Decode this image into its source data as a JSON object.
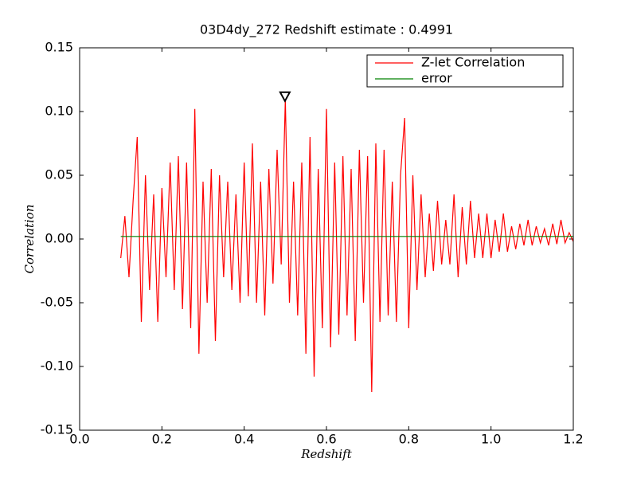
{
  "chart_data": {
    "type": "line",
    "title": "03D4dy_272 Redshift estimate : 0.4991",
    "x_label": "Redshift",
    "y_label": "Correlation",
    "xlim": [
      0.0,
      1.2
    ],
    "ylim": [
      -0.15,
      0.15
    ],
    "xticks": [
      {
        "value": 0.0,
        "label": "0.0"
      },
      0.2,
      0.4,
      0.6,
      0.8,
      {
        "value": 1.0,
        "label": "1.0"
      },
      1.2
    ],
    "yticks": [
      -0.15,
      {
        "value": -0.1,
        "label": "-0.10"
      },
      -0.05,
      {
        "value": 0.0,
        "label": "0.00"
      },
      0.05,
      {
        "value": 0.1,
        "label": "0.10"
      },
      0.15
    ],
    "legend": "upper right",
    "peak_marker": {
      "x": 0.4991,
      "y": 0.112
    },
    "series": [
      {
        "name": "Z-let Correlation",
        "color": "#ff0000",
        "x": [
          0.1,
          0.11,
          0.12,
          0.13,
          0.14,
          0.15,
          0.16,
          0.17,
          0.18,
          0.19,
          0.2,
          0.21,
          0.22,
          0.23,
          0.24,
          0.25,
          0.26,
          0.27,
          0.28,
          0.29,
          0.3,
          0.31,
          0.32,
          0.33,
          0.34,
          0.35,
          0.36,
          0.37,
          0.38,
          0.39,
          0.4,
          0.41,
          0.42,
          0.43,
          0.44,
          0.45,
          0.46,
          0.47,
          0.48,
          0.49,
          0.5,
          0.51,
          0.52,
          0.53,
          0.54,
          0.55,
          0.56,
          0.57,
          0.58,
          0.59,
          0.6,
          0.61,
          0.62,
          0.63,
          0.64,
          0.65,
          0.66,
          0.67,
          0.68,
          0.69,
          0.7,
          0.71,
          0.72,
          0.73,
          0.74,
          0.75,
          0.76,
          0.77,
          0.78,
          0.79,
          0.8,
          0.81,
          0.82,
          0.83,
          0.84,
          0.85,
          0.86,
          0.87,
          0.88,
          0.89,
          0.9,
          0.91,
          0.92,
          0.93,
          0.94,
          0.95,
          0.96,
          0.97,
          0.98,
          0.99,
          1.0,
          1.01,
          1.02,
          1.03,
          1.04,
          1.05,
          1.06,
          1.07,
          1.08,
          1.09,
          1.1,
          1.11,
          1.12,
          1.13,
          1.14,
          1.15,
          1.16,
          1.17,
          1.18,
          1.19,
          1.2
        ],
        "values": [
          -0.015,
          0.018,
          -0.03,
          0.03,
          0.08,
          -0.065,
          0.05,
          -0.04,
          0.035,
          -0.065,
          0.04,
          -0.03,
          0.06,
          -0.04,
          0.065,
          -0.055,
          0.06,
          -0.07,
          0.102,
          -0.09,
          0.045,
          -0.05,
          0.055,
          -0.08,
          0.05,
          -0.03,
          0.045,
          -0.04,
          0.035,
          -0.05,
          0.06,
          -0.045,
          0.075,
          -0.05,
          0.045,
          -0.06,
          0.055,
          -0.035,
          0.07,
          -0.02,
          0.11,
          -0.05,
          0.045,
          -0.06,
          0.06,
          -0.09,
          0.08,
          -0.108,
          0.055,
          -0.07,
          0.102,
          -0.085,
          0.06,
          -0.075,
          0.065,
          -0.06,
          0.055,
          -0.08,
          0.07,
          -0.05,
          0.065,
          -0.12,
          0.075,
          -0.065,
          0.07,
          -0.06,
          0.045,
          -0.065,
          0.05,
          0.095,
          -0.07,
          0.05,
          -0.04,
          0.035,
          -0.03,
          0.02,
          -0.025,
          0.03,
          -0.02,
          0.015,
          -0.02,
          0.035,
          -0.03,
          0.025,
          -0.02,
          0.03,
          -0.015,
          0.02,
          -0.015,
          0.02,
          -0.015,
          0.015,
          -0.01,
          0.02,
          -0.01,
          0.01,
          -0.008,
          0.012,
          -0.005,
          0.015,
          -0.005,
          0.01,
          -0.003,
          0.008,
          -0.005,
          0.012,
          -0.004,
          0.015,
          -0.003,
          0.005,
          -0.002
        ]
      },
      {
        "name": "error",
        "color": "#008000",
        "x": [
          0.1,
          1.2
        ],
        "values": [
          0.002,
          0.002
        ]
      }
    ]
  }
}
